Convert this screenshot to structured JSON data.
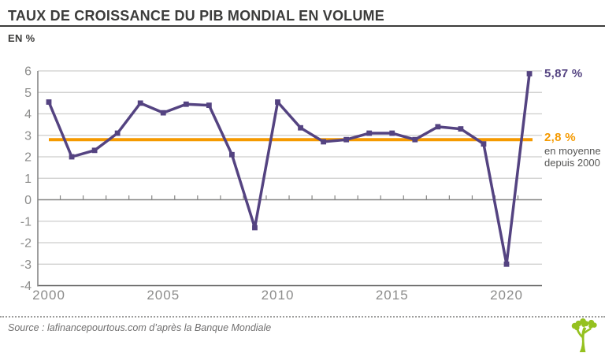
{
  "header": {
    "title": "TAUX DE CROISSANCE DU PIB MONDIAL EN VOLUME",
    "subtitle": "EN %"
  },
  "chart_data": {
    "type": "line",
    "title": "Taux de croissance du PIB mondial en volume",
    "ylabel": "EN %",
    "xlabel": "",
    "x": [
      2000,
      2001,
      2002,
      2003,
      2004,
      2005,
      2006,
      2007,
      2008,
      2009,
      2010,
      2011,
      2012,
      2013,
      2014,
      2015,
      2016,
      2017,
      2018,
      2019,
      2020,
      2021
    ],
    "series": [
      {
        "name": "Taux de croissance du PIB mondial (%)",
        "color": "#544381",
        "values": [
          4.55,
          2.0,
          2.3,
          3.1,
          4.5,
          4.05,
          4.45,
          4.4,
          2.1,
          -1.3,
          4.55,
          3.35,
          2.7,
          2.8,
          3.1,
          3.1,
          2.8,
          3.4,
          3.3,
          2.6,
          -3.0,
          5.87
        ]
      }
    ],
    "mean_line": {
      "value": 2.8,
      "color": "#f59a00"
    },
    "ylim": [
      -4,
      6
    ],
    "yticks": [
      6,
      5,
      4,
      3,
      2,
      1,
      0,
      -1,
      -2,
      -3,
      -4
    ],
    "xticks": [
      2000,
      2005,
      2010,
      2015,
      2020
    ],
    "grid": true,
    "legend_position": "none",
    "annotations": {
      "last_value_label": "5,87 %",
      "mean_value_label": "2,8 %",
      "mean_caption_line1": "en moyenne",
      "mean_caption_line2": "depuis 2000"
    }
  },
  "colors": {
    "series": "#544381",
    "mean": "#f59a00",
    "title": "#3c3c3b",
    "axis_text": "#8c8c8b",
    "gridline": "#cdcdcc",
    "zero_line": "#868685",
    "frame_line": "#5f5f5e",
    "logo_green": "#95c11f"
  },
  "footer": {
    "source": "Source : lafinancepourtous.com d’après la Banque Mondiale",
    "logo": "tree-icon"
  }
}
